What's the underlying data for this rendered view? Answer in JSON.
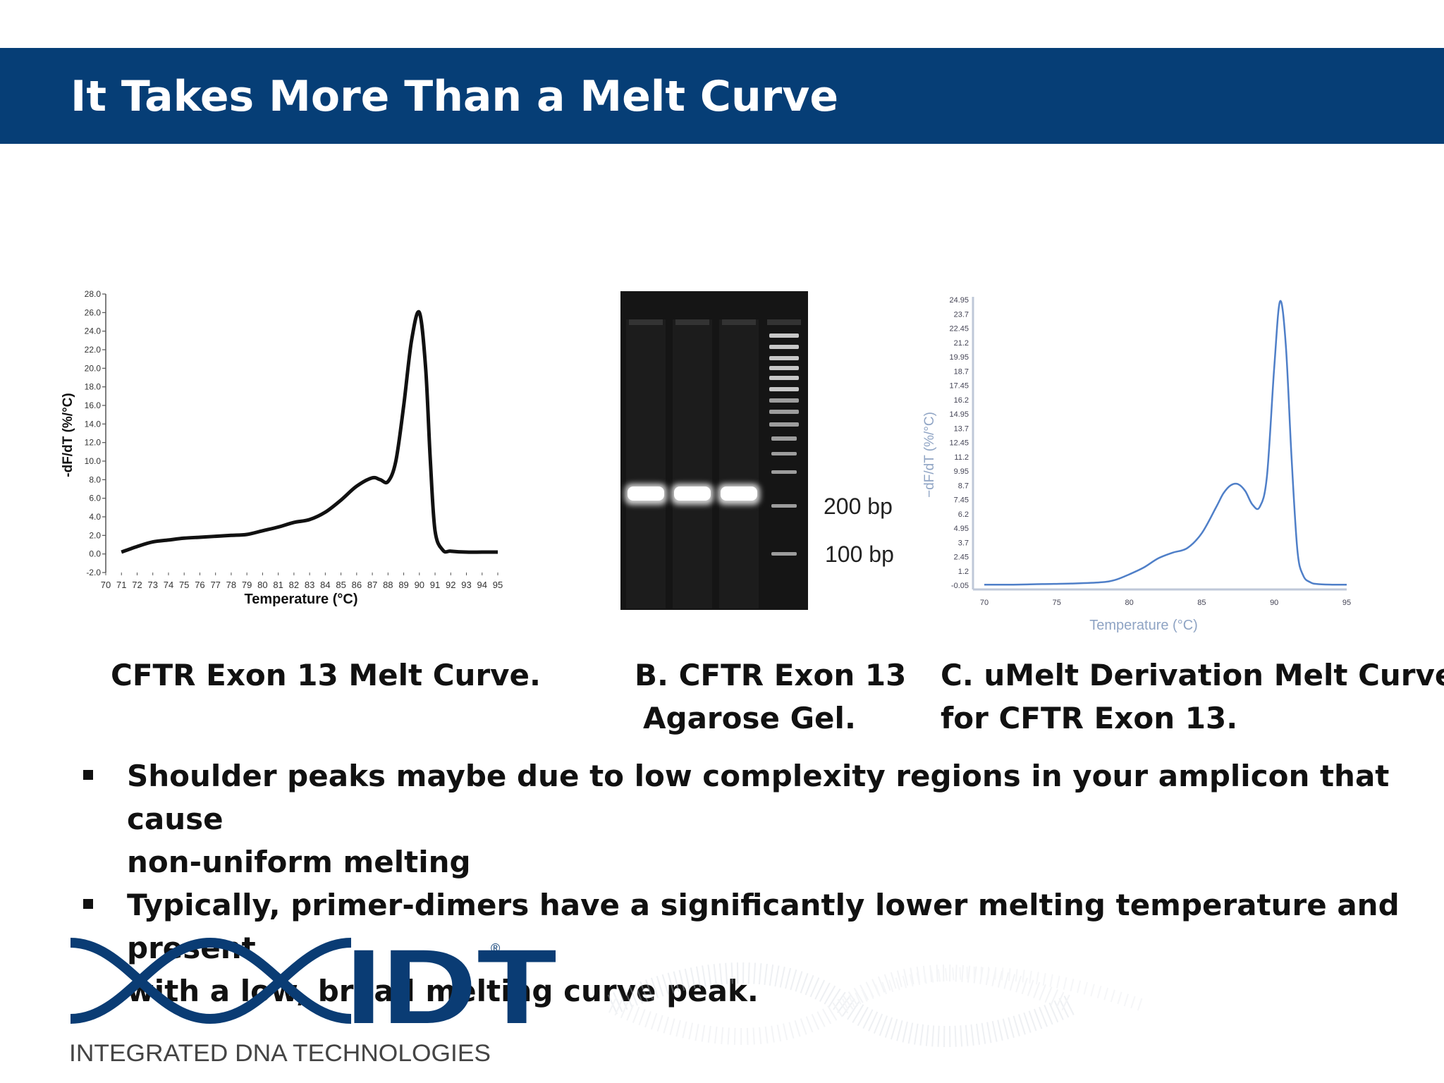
{
  "slide": {
    "title": "It Takes More Than a Melt Curve"
  },
  "panels": {
    "a": {
      "caption": "CFTR Exon 13 Melt Curve."
    },
    "b": {
      "caption_line1": "B. CFTR Exon 13",
      "caption_line2": "Agarose Gel.",
      "marker_200": "200 bp",
      "marker_100": "100 bp"
    },
    "c": {
      "caption_line1": "C. uMelt Derivation Melt Curve",
      "caption_line2": "for CFTR Exon 13."
    }
  },
  "bullets": [
    {
      "line1": "Shoulder peaks maybe due to low complexity regions in your amplicon that cause",
      "line2": "non-uniform melting"
    },
    {
      "line1": "Typically, primer-dimers have a significantly lower melting temperature and present",
      "line2": "with a low, broad melting curve peak."
    }
  ],
  "logo": {
    "text": "IDT",
    "tagline": "INTEGRATED DNA TECHNOLOGIES",
    "registered": "®"
  },
  "chart_data": [
    {
      "type": "line",
      "title": "",
      "xlabel": "Temperature (°C)",
      "ylabel": "-dF/dT (%/°C)",
      "xlim": [
        70,
        95
      ],
      "ylim": [
        -2,
        28
      ],
      "x_ticks": [
        70,
        71,
        72,
        73,
        74,
        75,
        76,
        77,
        78,
        79,
        80,
        81,
        82,
        83,
        84,
        85,
        86,
        87,
        88,
        89,
        90,
        91,
        92,
        93,
        94,
        95
      ],
      "y_ticks": [
        "28.0",
        "26.0",
        "24.0",
        "22.0",
        "20.0",
        "18.0",
        "16.0",
        "14.0",
        "12.0",
        "10.0",
        "8.0",
        "6.0",
        "4.0",
        "2.0",
        "0.0",
        "-2.0"
      ],
      "grid": false,
      "series": [
        {
          "x": [
            71,
            72,
            73,
            74,
            75,
            76,
            77,
            78,
            79,
            80,
            81,
            82,
            83,
            84,
            85,
            86,
            87,
            87.5,
            88,
            88.5,
            89,
            89.5,
            90,
            90.4,
            90.7,
            91,
            91.5,
            92,
            93,
            94,
            95
          ],
          "values": [
            0.2,
            0.8,
            1.3,
            1.5,
            1.7,
            1.8,
            1.9,
            2.0,
            2.1,
            2.5,
            2.9,
            3.4,
            3.7,
            4.5,
            5.8,
            7.3,
            8.2,
            8.0,
            7.8,
            10.0,
            16.0,
            23.0,
            26.0,
            20.0,
            10.0,
            2.5,
            0.4,
            0.3,
            0.2,
            0.2,
            0.2
          ]
        }
      ],
      "line_color": "#111111"
    },
    {
      "type": "line",
      "title": "",
      "xlabel": "Temperature (°C)",
      "ylabel": "−dF/dT (%/°C)",
      "xlim": [
        70,
        95
      ],
      "ylim": [
        -0.05,
        24.95
      ],
      "x_ticks": [
        70,
        75,
        80,
        85,
        90,
        95
      ],
      "y_ticks": [
        "24.95",
        "23.7",
        "22.45",
        "21.2",
        "19.95",
        "18.7",
        "17.45",
        "16.2",
        "14.95",
        "13.7",
        "12.45",
        "11.2",
        "9.95",
        "8.7",
        "7.45",
        "6.2",
        "4.95",
        "3.7",
        "2.45",
        "1.2",
        "-0.05"
      ],
      "grid": false,
      "series": [
        {
          "x": [
            70,
            72,
            74,
            76,
            78,
            79,
            80,
            81,
            82,
            83,
            84,
            85,
            86,
            86.5,
            87,
            87.5,
            88,
            88.5,
            89,
            89.5,
            90,
            90.4,
            90.8,
            91.2,
            91.6,
            92,
            92.5,
            93,
            94,
            95
          ],
          "values": [
            0.0,
            0.0,
            0.05,
            0.1,
            0.2,
            0.4,
            0.9,
            1.5,
            2.3,
            2.8,
            3.2,
            4.5,
            6.8,
            8.0,
            8.7,
            8.8,
            8.2,
            7.0,
            6.8,
            9.5,
            19.0,
            24.8,
            21.0,
            11.0,
            3.0,
            0.8,
            0.2,
            0.05,
            0.0,
            0.0
          ]
        }
      ],
      "line_color": "#4f7fc8"
    }
  ]
}
